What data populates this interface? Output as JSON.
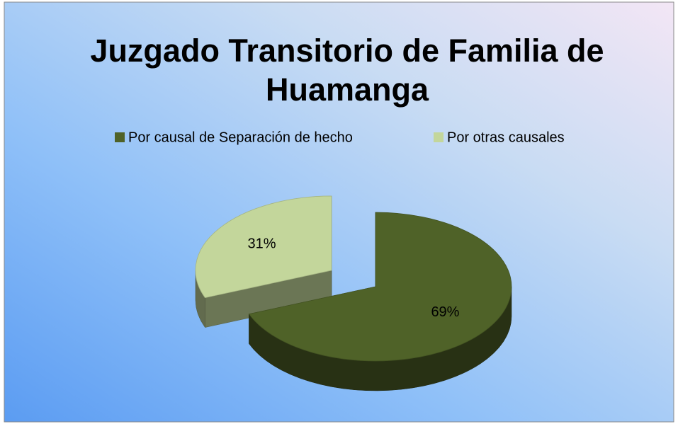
{
  "chart_data": {
    "type": "pie",
    "title": [
      "Juzgado Transitorio de Familia de",
      "Huamanga"
    ],
    "categories": [
      "Por causal de Separación de hecho",
      "Por otras causales"
    ],
    "values": [
      69,
      31
    ],
    "value_labels": [
      "69%",
      "31%"
    ],
    "colors": [
      "#4f6228",
      "#c3d69b"
    ],
    "legend": "top",
    "exploded": [
      false,
      true
    ]
  }
}
